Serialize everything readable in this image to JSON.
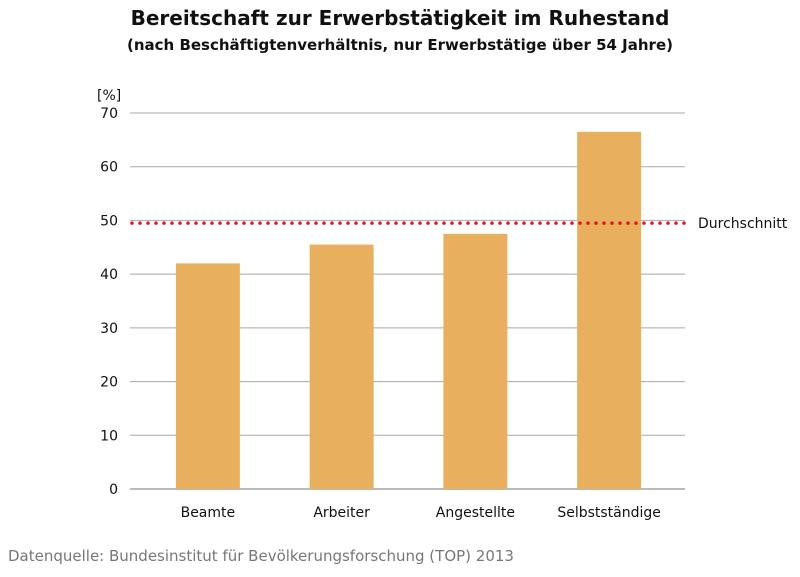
{
  "chart_data": {
    "type": "bar",
    "title": "Bereitschaft zur Erwerbstätigkeit im Ruhestand",
    "subtitle": "(nach Beschäftigtenverhältnis, nur Erwerbstätige über 54 Jahre)",
    "ylabel": "[%]",
    "categories": [
      "Beamte",
      "Arbeiter",
      "Angestellte",
      "Selbstständige"
    ],
    "values": [
      42,
      45.5,
      47.5,
      66.5
    ],
    "ylim": [
      0,
      70
    ],
    "yticks": [
      0,
      10,
      20,
      30,
      40,
      50,
      60,
      70
    ],
    "grid": true,
    "bar_color": "#e8b05e",
    "reference_line": {
      "label": "Durchschnitt",
      "value": 49.5,
      "color": "#e0141e",
      "style": "dotted"
    }
  },
  "source": "Datenquelle: Bundesinstitut für Bevölkerungsforschung (TOP) 2013"
}
